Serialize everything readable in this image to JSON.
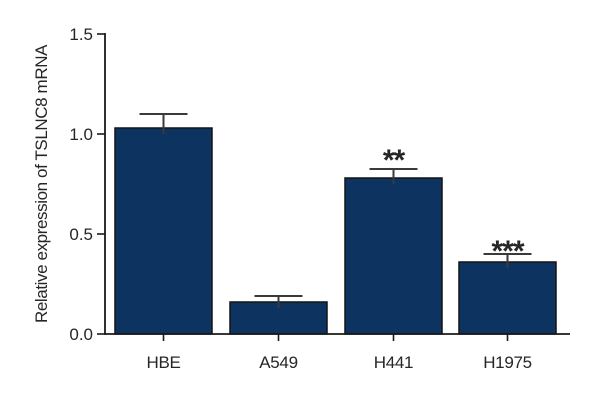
{
  "figure": {
    "background": "#ffffff"
  },
  "chart_data": {
    "type": "bar",
    "title": "",
    "xlabel": "",
    "ylabel": "Relative expression of TSLNC8 mRNA",
    "categories": [
      "HBE",
      "A549",
      "H441",
      "H1975"
    ],
    "values": [
      1.03,
      0.16,
      0.78,
      0.36
    ],
    "errors_upper": [
      0.07,
      0.03,
      0.045,
      0.04
    ],
    "significance": [
      "",
      "",
      "**",
      "***"
    ],
    "ylim": [
      0.0,
      1.5
    ],
    "yticks": [
      0.0,
      0.5,
      1.0,
      1.5
    ],
    "ytick_labels": [
      "0.0",
      "0.5",
      "1.0",
      "1.5"
    ],
    "grid": false,
    "legend": "none",
    "bar_color": "#0d3361",
    "bar_edge_color": "#141414",
    "error_bar_color": "#3a3a3a",
    "axis_color": "#1a1a1a",
    "text_color": "#262626"
  }
}
